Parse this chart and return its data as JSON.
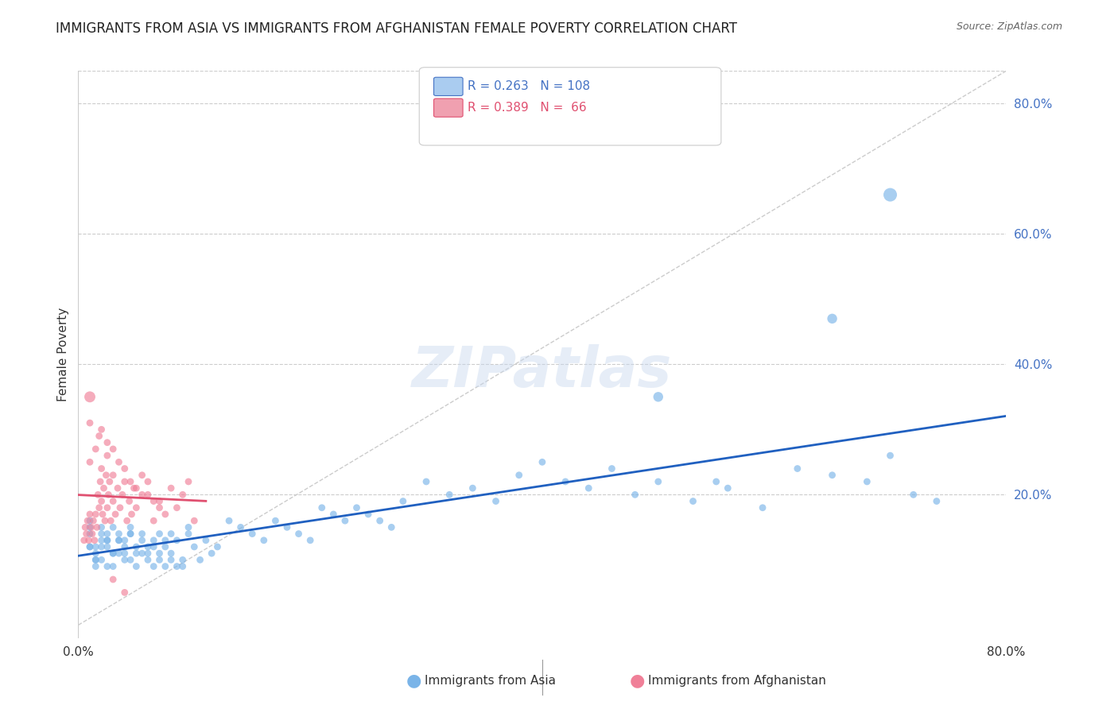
{
  "title": "IMMIGRANTS FROM ASIA VS IMMIGRANTS FROM AFGHANISTAN FEMALE POVERTY CORRELATION CHART",
  "source": "Source: ZipAtlas.com",
  "ylabel": "Female Poverty",
  "xmin": 0.0,
  "xmax": 0.8,
  "ymin": -0.02,
  "ymax": 0.85,
  "right_ytick_color": "#4472c4",
  "watermark": "ZIPatlas",
  "legend_asia_label": "Immigrants from Asia",
  "legend_afg_label": "Immigrants from Afghanistan",
  "asia_R": "0.263",
  "asia_N": "108",
  "afg_R": "0.389",
  "afg_N": "66",
  "asia_color": "#7ab4e8",
  "afg_color": "#f08098",
  "asia_trend_color": "#2060c0",
  "afg_trend_color": "#e05070",
  "legend_box_color_asia": "#aaccf0",
  "legend_box_color_afg": "#f0a0b0",
  "grid_color": "#cccccc",
  "title_fontsize": 12,
  "source_fontsize": 9,
  "asia_scatter": {
    "x": [
      0.01,
      0.01,
      0.015,
      0.01,
      0.02,
      0.015,
      0.01,
      0.025,
      0.02,
      0.015,
      0.03,
      0.025,
      0.02,
      0.015,
      0.01,
      0.035,
      0.03,
      0.025,
      0.02,
      0.015,
      0.04,
      0.035,
      0.03,
      0.025,
      0.02,
      0.045,
      0.04,
      0.035,
      0.03,
      0.025,
      0.05,
      0.045,
      0.04,
      0.035,
      0.055,
      0.05,
      0.045,
      0.04,
      0.06,
      0.055,
      0.05,
      0.045,
      0.065,
      0.06,
      0.055,
      0.07,
      0.065,
      0.06,
      0.075,
      0.07,
      0.065,
      0.08,
      0.075,
      0.07,
      0.085,
      0.08,
      0.075,
      0.09,
      0.085,
      0.08,
      0.095,
      0.09,
      0.1,
      0.095,
      0.105,
      0.11,
      0.115,
      0.12,
      0.13,
      0.14,
      0.15,
      0.16,
      0.17,
      0.18,
      0.19,
      0.2,
      0.21,
      0.22,
      0.23,
      0.24,
      0.25,
      0.26,
      0.27,
      0.28,
      0.3,
      0.32,
      0.34,
      0.36,
      0.38,
      0.4,
      0.42,
      0.44,
      0.46,
      0.48,
      0.5,
      0.53,
      0.56,
      0.59,
      0.62,
      0.65,
      0.68,
      0.7,
      0.72,
      0.74,
      0.5,
      0.55,
      0.65,
      0.7
    ],
    "y": [
      0.12,
      0.14,
      0.1,
      0.16,
      0.13,
      0.11,
      0.15,
      0.12,
      0.14,
      0.1,
      0.11,
      0.13,
      0.15,
      0.09,
      0.12,
      0.14,
      0.11,
      0.13,
      0.1,
      0.12,
      0.11,
      0.13,
      0.09,
      0.14,
      0.12,
      0.1,
      0.13,
      0.11,
      0.15,
      0.09,
      0.12,
      0.14,
      0.1,
      0.13,
      0.11,
      0.09,
      0.14,
      0.12,
      0.1,
      0.13,
      0.11,
      0.15,
      0.09,
      0.12,
      0.14,
      0.1,
      0.13,
      0.11,
      0.09,
      0.14,
      0.12,
      0.1,
      0.13,
      0.11,
      0.09,
      0.14,
      0.12,
      0.1,
      0.13,
      0.11,
      0.15,
      0.09,
      0.12,
      0.14,
      0.1,
      0.13,
      0.11,
      0.12,
      0.16,
      0.15,
      0.14,
      0.13,
      0.16,
      0.15,
      0.14,
      0.13,
      0.18,
      0.17,
      0.16,
      0.18,
      0.17,
      0.16,
      0.15,
      0.19,
      0.22,
      0.2,
      0.21,
      0.19,
      0.23,
      0.25,
      0.22,
      0.21,
      0.24,
      0.2,
      0.22,
      0.19,
      0.21,
      0.18,
      0.24,
      0.23,
      0.22,
      0.26,
      0.2,
      0.19,
      0.35,
      0.22,
      0.47,
      0.66
    ],
    "sizes": [
      40,
      40,
      40,
      40,
      40,
      40,
      40,
      40,
      40,
      40,
      40,
      40,
      40,
      40,
      40,
      40,
      40,
      40,
      40,
      40,
      40,
      40,
      40,
      40,
      40,
      40,
      40,
      40,
      40,
      40,
      40,
      40,
      40,
      40,
      40,
      40,
      40,
      40,
      40,
      40,
      40,
      40,
      40,
      40,
      40,
      40,
      40,
      40,
      40,
      40,
      40,
      40,
      40,
      40,
      40,
      40,
      40,
      40,
      40,
      40,
      40,
      40,
      40,
      40,
      40,
      40,
      40,
      40,
      40,
      40,
      40,
      40,
      40,
      40,
      40,
      40,
      40,
      40,
      40,
      40,
      40,
      40,
      40,
      40,
      40,
      40,
      40,
      40,
      40,
      40,
      40,
      40,
      40,
      40,
      40,
      40,
      40,
      40,
      40,
      40,
      40,
      40,
      40,
      40,
      80,
      40,
      80,
      150
    ]
  },
  "afg_scatter": {
    "x": [
      0.005,
      0.006,
      0.007,
      0.008,
      0.009,
      0.01,
      0.011,
      0.012,
      0.013,
      0.014,
      0.015,
      0.016,
      0.017,
      0.018,
      0.019,
      0.02,
      0.021,
      0.022,
      0.023,
      0.024,
      0.025,
      0.026,
      0.027,
      0.028,
      0.03,
      0.032,
      0.034,
      0.036,
      0.038,
      0.04,
      0.042,
      0.044,
      0.046,
      0.048,
      0.05,
      0.055,
      0.06,
      0.065,
      0.07,
      0.075,
      0.08,
      0.085,
      0.09,
      0.095,
      0.1,
      0.01,
      0.015,
      0.02,
      0.025,
      0.03,
      0.035,
      0.04,
      0.045,
      0.05,
      0.055,
      0.06,
      0.065,
      0.07,
      0.01,
      0.018,
      0.025,
      0.03,
      0.01,
      0.02,
      0.03,
      0.04
    ],
    "y": [
      0.13,
      0.15,
      0.14,
      0.16,
      0.13,
      0.17,
      0.15,
      0.14,
      0.16,
      0.13,
      0.17,
      0.15,
      0.2,
      0.18,
      0.22,
      0.19,
      0.17,
      0.21,
      0.16,
      0.23,
      0.18,
      0.2,
      0.22,
      0.16,
      0.19,
      0.17,
      0.21,
      0.18,
      0.2,
      0.22,
      0.16,
      0.19,
      0.17,
      0.21,
      0.18,
      0.2,
      0.22,
      0.16,
      0.19,
      0.17,
      0.21,
      0.18,
      0.2,
      0.22,
      0.16,
      0.25,
      0.27,
      0.24,
      0.26,
      0.23,
      0.25,
      0.24,
      0.22,
      0.21,
      0.23,
      0.2,
      0.19,
      0.18,
      0.31,
      0.29,
      0.28,
      0.27,
      0.35,
      0.3,
      0.07,
      0.05
    ],
    "sizes": [
      40,
      40,
      40,
      40,
      40,
      40,
      40,
      40,
      40,
      40,
      40,
      40,
      40,
      40,
      40,
      40,
      40,
      40,
      40,
      40,
      40,
      40,
      40,
      40,
      40,
      40,
      40,
      40,
      40,
      40,
      40,
      40,
      40,
      40,
      40,
      40,
      40,
      40,
      40,
      40,
      40,
      40,
      40,
      40,
      40,
      40,
      40,
      40,
      40,
      40,
      40,
      40,
      40,
      40,
      40,
      40,
      40,
      40,
      40,
      40,
      40,
      40,
      100,
      40,
      40,
      40
    ]
  }
}
